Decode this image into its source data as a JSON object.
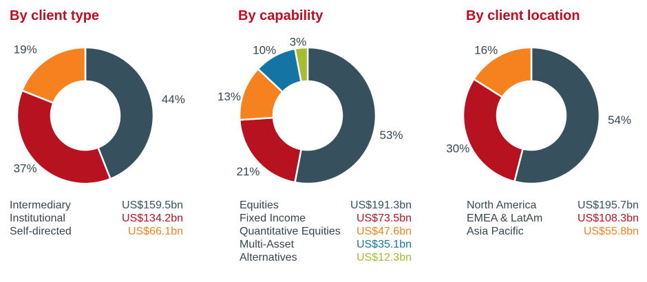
{
  "styles": {
    "background": "#ffffff",
    "title_color": "#c00c1e",
    "text_color": "#37464f",
    "separator_color": "#ffffff"
  },
  "chart_data": [
    {
      "type": "pie",
      "variant": "donut",
      "title": "By client type",
      "start": "top",
      "direction": "clockwise",
      "legend_position": "below",
      "slices": [
        {
          "label": "Intermediary",
          "pct": 44,
          "pct_label": "44%",
          "value": "US$159.5bn",
          "color": "#36505e"
        },
        {
          "label": "Institutional",
          "pct": 37,
          "pct_label": "37%",
          "value": "US$134.2bn",
          "color": "#b6121f"
        },
        {
          "label": "Self-directed",
          "pct": 19,
          "pct_label": "19%",
          "value": "US$66.1bn",
          "color": "#f5821f"
        }
      ]
    },
    {
      "type": "pie",
      "variant": "donut",
      "title": "By capability",
      "start": "top",
      "direction": "clockwise",
      "legend_position": "below",
      "slices": [
        {
          "label": "Equities",
          "pct": 53,
          "pct_label": "53%",
          "value": "US$191.3bn",
          "color": "#36505e"
        },
        {
          "label": "Fixed Income",
          "pct": 21,
          "pct_label": "21%",
          "value": "US$73.5bn",
          "color": "#b6121f"
        },
        {
          "label": "Quantitative Equities",
          "pct": 13,
          "pct_label": "13%",
          "value": "US$47.6bn",
          "color": "#f5821f"
        },
        {
          "label": "Multi-Asset",
          "pct": 10,
          "pct_label": "10%",
          "value": "US$35.1bn",
          "color": "#1474a4"
        },
        {
          "label": "Alternatives",
          "pct": 3,
          "pct_label": "3%",
          "value": "US$12.3bn",
          "color": "#a4bd31"
        }
      ]
    },
    {
      "type": "pie",
      "variant": "donut",
      "title": "By client location",
      "start": "top",
      "direction": "clockwise",
      "legend_position": "below",
      "slices": [
        {
          "label": "North America",
          "pct": 54,
          "pct_label": "54%",
          "value": "US$195.7bn",
          "color": "#36505e"
        },
        {
          "label": "EMEA & LatAm",
          "pct": 30,
          "pct_label": "30%",
          "value": "US$108.3bn",
          "color": "#b6121f"
        },
        {
          "label": "Asia Pacific",
          "pct": 16,
          "pct_label": "16%",
          "value": "US$55.8bn",
          "color": "#f5821f"
        }
      ]
    }
  ]
}
